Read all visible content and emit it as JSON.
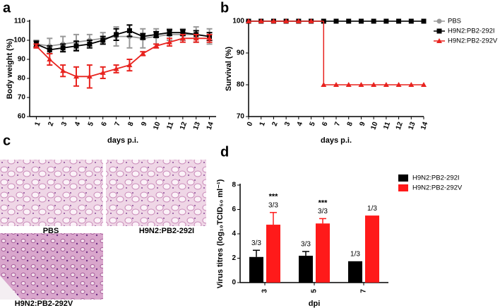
{
  "panel_labels": [
    "a",
    "b",
    "c",
    "d"
  ],
  "chart_data": [
    {
      "type": "line",
      "xlabel": "days p.i.",
      "ylabel": "Body weight (%)",
      "x": [
        1,
        2,
        3,
        4,
        5,
        6,
        7,
        8,
        9,
        10,
        11,
        12,
        13,
        14
      ],
      "xlim": [
        0.5,
        14.5
      ],
      "xticks": [
        1,
        2,
        3,
        4,
        5,
        6,
        7,
        8,
        9,
        10,
        11,
        12,
        13,
        14
      ],
      "ylim": [
        60,
        110
      ],
      "yticks": [
        60,
        70,
        80,
        90,
        100,
        110
      ],
      "series": [
        {
          "color": "#999999",
          "marker": "circle",
          "values": [
            98,
            97,
            98,
            99,
            100,
            101,
            102,
            102,
            101,
            102,
            103,
            103,
            103,
            102
          ],
          "errors": [
            2,
            4,
            4,
            4,
            3,
            3,
            5,
            6,
            5,
            4,
            3,
            3,
            4,
            4
          ]
        },
        {
          "color": "#000000",
          "marker": "square",
          "values": [
            98,
            95,
            96,
            97,
            98,
            100,
            103,
            105,
            102,
            103,
            104,
            104,
            103,
            102
          ],
          "errors": [
            1.5,
            2,
            2,
            2.5,
            2,
            2,
            3,
            3,
            1.5,
            1.5,
            1.5,
            1.5,
            2,
            2
          ]
        },
        {
          "color": "#e8231f",
          "marker": "triangle",
          "values": [
            97,
            90,
            84,
            81,
            81,
            83,
            85,
            87,
            93,
            97,
            99,
            101,
            101,
            101
          ],
          "errors": [
            1,
            3,
            3,
            5,
            6,
            3,
            2,
            3,
            1,
            1,
            2,
            2,
            2,
            2
          ]
        }
      ]
    },
    {
      "type": "line",
      "drawstyle": "steps-post",
      "xlabel": "days p.i.",
      "ylabel": "Survival (%)",
      "x": [
        0,
        1,
        2,
        3,
        4,
        5,
        6,
        7,
        8,
        9,
        10,
        11,
        12,
        13,
        14
      ],
      "xlim": [
        0,
        14
      ],
      "xticks": [
        0,
        1,
        2,
        3,
        4,
        5,
        6,
        7,
        8,
        9,
        10,
        11,
        12,
        13,
        14
      ],
      "ylim": [
        70,
        100
      ],
      "yticks": [
        70,
        80,
        90,
        100
      ],
      "legend": "right",
      "series": [
        {
          "name": "PBS",
          "color": "#999999",
          "marker": "circle",
          "values": [
            100,
            100,
            100,
            100,
            100,
            100,
            100,
            100,
            100,
            100,
            100,
            100,
            100,
            100,
            100
          ]
        },
        {
          "name": "H9N2:PB2-292I",
          "color": "#000000",
          "marker": "square",
          "values": [
            100,
            100,
            100,
            100,
            100,
            100,
            100,
            100,
            100,
            100,
            100,
            100,
            100,
            100,
            100
          ]
        },
        {
          "name": "H9N2:PB2-292V",
          "color": "#e8231f",
          "marker": "triangle",
          "values": [
            100,
            100,
            100,
            100,
            100,
            100,
            80,
            80,
            80,
            80,
            80,
            80,
            80,
            80,
            80
          ]
        }
      ]
    },
    {
      "type": "bar",
      "xlabel": "dpi",
      "ylabel": "Virus titres (log₁₀TCID₅₀ ml⁻¹)",
      "categories": [
        "3",
        "5",
        "7"
      ],
      "ylim": [
        0,
        8
      ],
      "yticks": [
        0,
        2,
        4,
        6,
        8
      ],
      "legend": "right",
      "series": [
        {
          "name": "H9N2:PB2-292I",
          "color": "#000000",
          "values": [
            2.1,
            2.2,
            1.75
          ],
          "errors": [
            0.55,
            0.35,
            null
          ],
          "value_labels": [
            "3/3",
            "3/3",
            "1/3"
          ]
        },
        {
          "name": "H9N2:PB2-292V",
          "color": "#ff1a1a",
          "values": [
            4.75,
            4.85,
            5.5
          ],
          "errors": [
            1.0,
            0.4,
            null
          ],
          "value_labels": [
            "3/3",
            "3/3",
            "1/3"
          ]
        }
      ],
      "annotations": [
        {
          "text": "***",
          "category": "3"
        },
        {
          "text": "***",
          "category": "5"
        }
      ]
    }
  ],
  "histology": {
    "images": [
      {
        "label": "PBS"
      },
      {
        "label": "H9N2:PB2-292I"
      },
      {
        "label": "H9N2:PB2-292V"
      }
    ]
  }
}
